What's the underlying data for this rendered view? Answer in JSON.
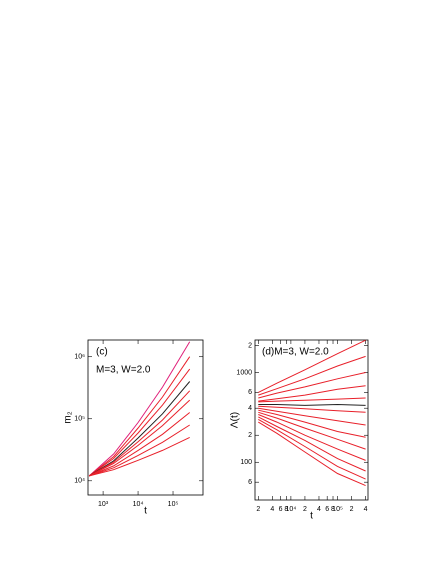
{
  "chart_data": [
    {
      "type": "line",
      "panel": "(c)",
      "annotation": "M=3, W=2.0",
      "ylabel": "m₂",
      "xlabel": "t",
      "log_x": true,
      "log_y": true,
      "x": [
        400,
        2000,
        10000,
        50000,
        300000
      ],
      "xlim": [
        370,
        720000
      ],
      "ylim": [
        5900,
        1860000
      ],
      "xticks": [
        {
          "value": 1000,
          "label": "10³"
        },
        {
          "value": 10000,
          "label": "10⁴"
        },
        {
          "value": 100000,
          "label": "10⁵"
        }
      ],
      "yticks": [
        {
          "value": 10000,
          "label": "10⁴"
        },
        {
          "value": 100000,
          "label": "10⁵"
        },
        {
          "value": 1000000,
          "label": "10⁶"
        }
      ],
      "series": [
        {
          "color": "#e0207a",
          "values": [
            12000,
            27000,
            87000,
            324000,
            1740000
          ]
        },
        {
          "color": "#e8202a",
          "values": [
            12000,
            24500,
            71000,
            224000,
            1000000
          ]
        },
        {
          "color": "#e8202a",
          "values": [
            12000,
            22900,
            58900,
            166000,
            631000
          ]
        },
        {
          "color": "#222222",
          "values": [
            12000,
            20900,
            49000,
            120000,
            398000
          ]
        },
        {
          "color": "#e8202a",
          "values": [
            12000,
            20000,
            42700,
            95500,
            282000
          ]
        },
        {
          "color": "#e8202a",
          "values": [
            12000,
            19000,
            37200,
            77600,
            200000
          ]
        },
        {
          "color": "#e8202a",
          "values": [
            12000,
            17400,
            30900,
            56200,
            126000
          ]
        },
        {
          "color": "#e8202a",
          "values": [
            12000,
            16200,
            25700,
            41700,
            79400
          ]
        },
        {
          "color": "#e8202a",
          "values": [
            12000,
            15100,
            21400,
            30900,
            50100
          ]
        }
      ]
    },
    {
      "type": "line",
      "annotation": "(d)M=3, W=2.0",
      "ylabel": "Λ(t)",
      "xlabel": "t",
      "log_x": true,
      "log_y": true,
      "x": [
        2000,
        5000,
        20000,
        100000,
        400000
      ],
      "xlim": [
        1700,
        450000
      ],
      "ylim": [
        38,
        2300
      ],
      "xticks": [
        {
          "value": 2000,
          "label": "2"
        },
        {
          "value": 4000,
          "label": "4"
        },
        {
          "value": 6000,
          "label": "6"
        },
        {
          "value": 8000,
          "label": "8"
        },
        {
          "value": 10000,
          "label": "10⁴"
        },
        {
          "value": 20000,
          "label": "2"
        },
        {
          "value": 40000,
          "label": "4"
        },
        {
          "value": 60000,
          "label": "6"
        },
        {
          "value": 80000,
          "label": "8"
        },
        {
          "value": 100000,
          "label": "10⁵"
        },
        {
          "value": 200000,
          "label": "2"
        },
        {
          "value": 400000,
          "label": "4"
        }
      ],
      "yticks": [
        {
          "value": 2000,
          "label": "2"
        },
        1000,
        {
          "value": 600,
          "label": "6"
        },
        {
          "value": 400,
          "label": "4"
        },
        {
          "value": 200,
          "label": "2"
        },
        100,
        {
          "value": 60,
          "label": "6"
        }
      ],
      "series": [
        {
          "color": "#e8202a",
          "values": [
            600,
            760,
            1070,
            1620,
            2290
          ]
        },
        {
          "color": "#e8202a",
          "values": [
            560,
            660,
            850,
            1180,
            1510
          ]
        },
        {
          "color": "#e8202a",
          "values": [
            520,
            590,
            690,
            850,
            1000
          ]
        },
        {
          "color": "#e8202a",
          "values": [
            480,
            510,
            560,
            650,
            710
          ]
        },
        {
          "color": "#e8202a",
          "values": [
            470,
            480,
            490,
            505,
            520
          ]
        },
        {
          "color": "#222222",
          "values": [
            440,
            440,
            430,
            440,
            430
          ]
        },
        {
          "color": "#e8202a",
          "values": [
            420,
            410,
            395,
            375,
            360
          ]
        },
        {
          "color": "#e8202a",
          "values": [
            400,
            370,
            330,
            290,
            260
          ]
        },
        {
          "color": "#e8202a",
          "values": [
            380,
            340,
            280,
            220,
            190
          ]
        },
        {
          "color": "#e8202a",
          "values": [
            360,
            310,
            240,
            180,
            140
          ]
        },
        {
          "color": "#e8202a",
          "values": [
            340,
            280,
            200,
            140,
            105
          ]
        },
        {
          "color": "#e8202a",
          "values": [
            320,
            250,
            175,
            110,
            80
          ]
        },
        {
          "color": "#e8202a",
          "values": [
            300,
            230,
            150,
            90,
            65
          ]
        },
        {
          "color": "#e8202a",
          "values": [
            280,
            210,
            130,
            75,
            55
          ]
        }
      ]
    }
  ]
}
